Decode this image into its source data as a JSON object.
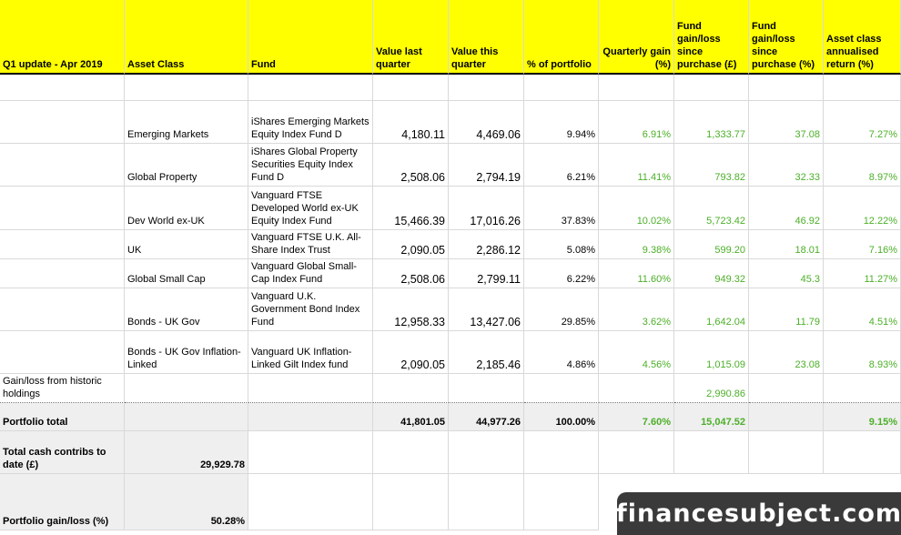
{
  "header": {
    "title": "Q1 update - Apr 2019",
    "asset_class": "Asset Class",
    "fund": "Fund",
    "value_last": "Value last quarter",
    "value_this": "Value this quarter",
    "pct_portfolio": "% of portfolio",
    "quarterly_gain": "Quarterly gain (%)",
    "fund_gain_gbp": "Fund gain/loss since purchase (£)",
    "fund_gain_pct": "Fund gain/loss since purchase (%)",
    "annualised": "Asset class annualised return (%)"
  },
  "rows": [
    {
      "asset": "Emerging Markets",
      "fund": "iShares Emerging Markets Equity Index Fund D",
      "last": "4,180.11",
      "this": "4,469.06",
      "pct": "9.94%",
      "qgain": "6.91%",
      "gbp": "1,333.77",
      "gpct": "37.08",
      "ann": "7.27%"
    },
    {
      "asset": "Global Property",
      "fund": "iShares Global Property Securities Equity Index Fund D",
      "last": "2,508.06",
      "this": "2,794.19",
      "pct": "6.21%",
      "qgain": "11.41%",
      "gbp": "793.82",
      "gpct": "32.33",
      "ann": "8.97%"
    },
    {
      "asset": "Dev World ex-UK",
      "fund": "Vanguard FTSE Developed World ex-UK Equity Index Fund",
      "last": "15,466.39",
      "this": "17,016.26",
      "pct": "37.83%",
      "qgain": "10.02%",
      "gbp": "5,723.42",
      "gpct": "46.92",
      "ann": "12.22%"
    },
    {
      "asset": "UK",
      "fund": "Vanguard FTSE U.K. All-Share Index Trust",
      "last": "2,090.05",
      "this": "2,286.12",
      "pct": "5.08%",
      "qgain": "9.38%",
      "gbp": "599.20",
      "gpct": "18.01",
      "ann": "7.16%"
    },
    {
      "asset": "Global Small Cap",
      "fund": "Vanguard Global Small-Cap Index Fund",
      "last": "2,508.06",
      "this": "2,799.11",
      "pct": "6.22%",
      "qgain": "11.60%",
      "gbp": "949.32",
      "gpct": "45.3",
      "ann": "11.27%"
    },
    {
      "asset": "Bonds - UK Gov",
      "fund": "Vanguard U.K. Government Bond Index Fund",
      "last": "12,958.33",
      "this": "13,427.06",
      "pct": "29.85%",
      "qgain": "3.62%",
      "gbp": "1,642.04",
      "gpct": "11.79",
      "ann": "4.51%"
    },
    {
      "asset": "Bonds - UK Gov Inflation-Linked",
      "fund": "Vanguard UK Inflation-Linked Gilt Index fund",
      "last": "2,090.05",
      "this": "2,185.46",
      "pct": "4.86%",
      "qgain": "4.56%",
      "gbp": "1,015.09",
      "gpct": "23.08",
      "ann": "8.93%"
    }
  ],
  "historic": {
    "label": "Gain/loss from historic holdings",
    "gbp": "2,990.86"
  },
  "total": {
    "label": "Portfolio total",
    "last": "41,801.05",
    "this": "44,977.26",
    "pct": "100.00%",
    "qgain": "7.60%",
    "gbp": "15,047.52",
    "ann": "9.15%"
  },
  "cash": {
    "label": "Total cash contribs to date (£)",
    "value": "29,929.78"
  },
  "gainloss": {
    "label": "Portfolio gain/loss (%)",
    "value": "50.28%"
  },
  "watermark": "financesubject.com"
}
